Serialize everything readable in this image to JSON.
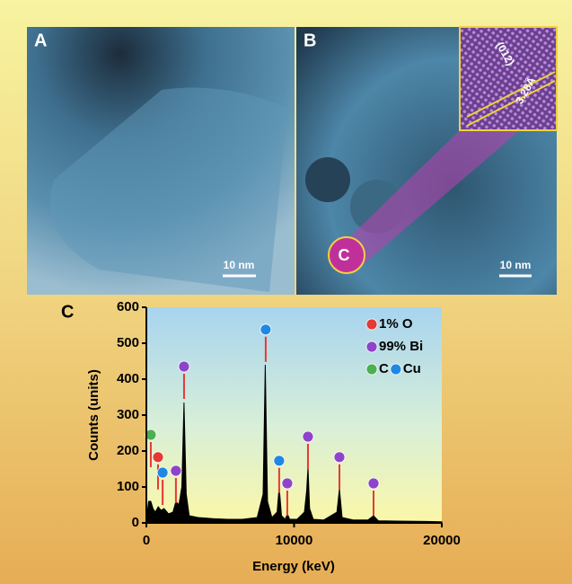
{
  "panels": {
    "a": {
      "label": "A",
      "scale_bar": "10 nm"
    },
    "b": {
      "label": "B",
      "scale_bar": "10 nm",
      "circle_label": "C",
      "inset_plane": "(012)",
      "inset_spacing": "3.28Å"
    }
  },
  "chart_data": {
    "type": "area",
    "label": "C",
    "x_label": "Energy (keV)",
    "y_label": "Counts (units)",
    "x": [
      0,
      150,
      300,
      450,
      600,
      800,
      1000,
      1200,
      1500,
      1800,
      2000,
      2200,
      2400,
      2550,
      2700,
      2900,
      3500,
      4500,
      5500,
      6500,
      7500,
      7900,
      8050,
      8200,
      8500,
      8850,
      8990,
      9150,
      9400,
      9550,
      9700,
      10200,
      10700,
      10850,
      10940,
      11050,
      11300,
      12000,
      12900,
      13070,
      13250,
      14000,
      15000,
      15380,
      15700,
      17000,
      19000,
      20000
    ],
    "values": [
      5,
      60,
      60,
      40,
      30,
      45,
      35,
      40,
      25,
      30,
      60,
      50,
      100,
      335,
      80,
      20,
      15,
      12,
      10,
      10,
      15,
      80,
      440,
      60,
      15,
      30,
      100,
      20,
      10,
      25,
      10,
      10,
      30,
      90,
      155,
      40,
      10,
      8,
      30,
      95,
      15,
      8,
      8,
      20,
      6,
      5,
      4,
      3
    ],
    "color": "#000000",
    "markers": [
      {
        "x": 300,
        "y": 245,
        "color": "#4caf50"
      },
      {
        "x": 790,
        "y": 183,
        "color": "#e53935"
      },
      {
        "x": 1100,
        "y": 140,
        "color": "#1e88e5"
      },
      {
        "x": 2000,
        "y": 145,
        "color": "#8e44c9"
      },
      {
        "x": 2550,
        "y": 435,
        "color": "#8e44c9"
      },
      {
        "x": 8080,
        "y": 538,
        "color": "#1e88e5"
      },
      {
        "x": 8990,
        "y": 173,
        "color": "#1e88e5"
      },
      {
        "x": 9540,
        "y": 110,
        "color": "#8e44c9"
      },
      {
        "x": 10940,
        "y": 240,
        "color": "#8e44c9"
      },
      {
        "x": 13070,
        "y": 183,
        "color": "#8e44c9"
      },
      {
        "x": 15380,
        "y": 110,
        "color": "#8e44c9"
      }
    ],
    "legend": [
      {
        "label": "1%  O",
        "color": "#e53935"
      },
      {
        "label": "99% Bi",
        "color": "#8e44c9"
      },
      {
        "label": "C",
        "color": "#4caf50"
      },
      {
        "label": "Cu",
        "color": "#1e88e5"
      }
    ],
    "xlim": [
      0,
      20000
    ],
    "xticks": [
      0,
      10000,
      20000
    ],
    "ylim": [
      0,
      600
    ],
    "yticks": [
      0,
      100,
      200,
      300,
      400,
      500,
      600
    ]
  }
}
